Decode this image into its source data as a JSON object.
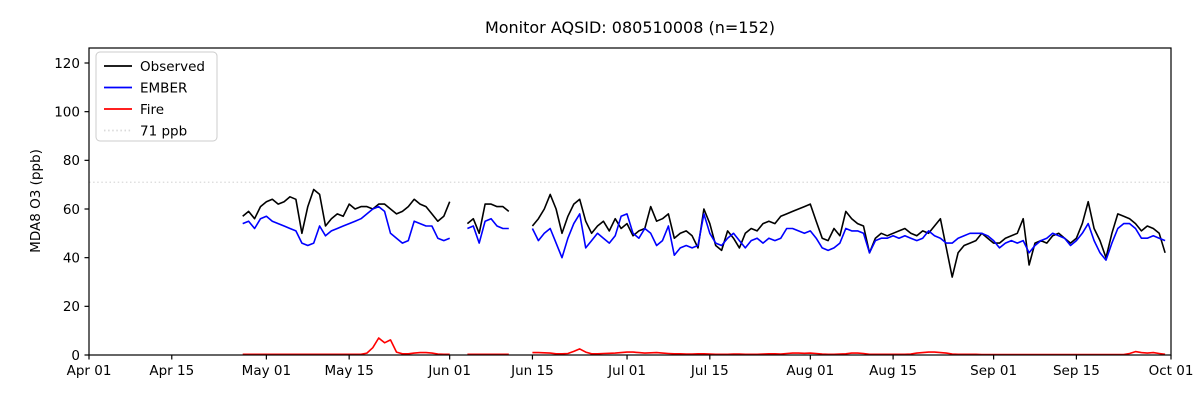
{
  "chart_data": {
    "type": "line",
    "title": "Monitor AQSID: 080510008 (n=152)",
    "ylabel": "MDA8 O3 (ppb)",
    "xlabel": "",
    "ylim": [
      0,
      126
    ],
    "yticks": [
      0,
      20,
      40,
      60,
      80,
      100,
      120
    ],
    "x_axis_days_total": 183,
    "xticks": [
      {
        "label": "Apr 01",
        "day": 0
      },
      {
        "label": "Apr 15",
        "day": 14
      },
      {
        "label": "May 01",
        "day": 30
      },
      {
        "label": "May 15",
        "day": 44
      },
      {
        "label": "Jun 01",
        "day": 61
      },
      {
        "label": "Jun 15",
        "day": 75
      },
      {
        "label": "Jul 01",
        "day": 91
      },
      {
        "label": "Jul 15",
        "day": 105
      },
      {
        "label": "Aug 01",
        "day": 122
      },
      {
        "label": "Aug 15",
        "day": 136
      },
      {
        "label": "Sep 01",
        "day": 153
      },
      {
        "label": "Sep 15",
        "day": 167
      },
      {
        "label": "Oct 01",
        "day": 183
      }
    ],
    "reference_line": {
      "label": "71 ppb",
      "value": 71,
      "color": "#d9d9d9",
      "style": "dotted"
    },
    "legend_position": "upper-left",
    "grid": false,
    "series": [
      {
        "name": "Observed",
        "color": "#000000",
        "style": "solid",
        "segments": [
          {
            "start_day": 26,
            "start_date": "Apr 27",
            "values": [
              57,
              59,
              56,
              61,
              63,
              64,
              62,
              63,
              65,
              64,
              50,
              61,
              68,
              66,
              53,
              56,
              58,
              57,
              62,
              60,
              61,
              61,
              60,
              62,
              62,
              60,
              58,
              59,
              61,
              64,
              62,
              61,
              58,
              55,
              57,
              63
            ]
          },
          {
            "start_day": 64,
            "start_date": "Jun 04",
            "values": [
              54,
              56,
              50,
              62,
              62,
              61,
              61,
              59
            ]
          },
          {
            "start_day": 75,
            "start_date": "Jun 15",
            "values": [
              53,
              56,
              60,
              66,
              60,
              50,
              57,
              62,
              64,
              55,
              50,
              53,
              55,
              51,
              56,
              52,
              54,
              49,
              51,
              52,
              61,
              55,
              56,
              58,
              48,
              50,
              51,
              49,
              44,
              60,
              54,
              45,
              43,
              51,
              48,
              44,
              50,
              52,
              51,
              54,
              55,
              54,
              57,
              58,
              59,
              60,
              61,
              62,
              55,
              48,
              47,
              52,
              49,
              59,
              56,
              54,
              53,
              42,
              48,
              50,
              49,
              50,
              51,
              52,
              50,
              49,
              51,
              50,
              53,
              56,
              44,
              32,
              42,
              45,
              46,
              47,
              50,
              48,
              46,
              46,
              48,
              49,
              50,
              56,
              37,
              46,
              47,
              46,
              49,
              50,
              48,
              46,
              48,
              54,
              63,
              52,
              47,
              40,
              50,
              58,
              57,
              56,
              54,
              51,
              53,
              52,
              50,
              42
            ]
          }
        ]
      },
      {
        "name": "EMBER",
        "color": "#0000ff",
        "style": "solid",
        "segments": [
          {
            "start_day": 26,
            "start_date": "Apr 27",
            "values": [
              54,
              55,
              52,
              56,
              57,
              55,
              54,
              53,
              52,
              51,
              46,
              45,
              46,
              53,
              49,
              51,
              52,
              53,
              54,
              55,
              56,
              58,
              60,
              61,
              59,
              50,
              48,
              46,
              47,
              55,
              54,
              53,
              53,
              48,
              47,
              48
            ]
          },
          {
            "start_day": 64,
            "start_date": "Jun 04",
            "values": [
              52,
              53,
              46,
              55,
              56,
              53,
              52,
              52
            ]
          },
          {
            "start_day": 75,
            "start_date": "Jun 15",
            "values": [
              52,
              47,
              50,
              52,
              46,
              40,
              48,
              54,
              58,
              44,
              47,
              50,
              48,
              46,
              49,
              57,
              58,
              50,
              48,
              52,
              50,
              45,
              47,
              53,
              41,
              44,
              45,
              44,
              45,
              58,
              50,
              46,
              45,
              48,
              50,
              47,
              44,
              47,
              48,
              46,
              48,
              47,
              48,
              52,
              52,
              51,
              50,
              51,
              48,
              44,
              43,
              44,
              46,
              52,
              51,
              51,
              50,
              42,
              47,
              48,
              48,
              49,
              48,
              49,
              48,
              47,
              48,
              51,
              49,
              48,
              46,
              46,
              48,
              49,
              50,
              50,
              50,
              49,
              47,
              44,
              46,
              47,
              46,
              47,
              42,
              45,
              47,
              48,
              50,
              49,
              48,
              45,
              47,
              50,
              54,
              47,
              42,
              39,
              46,
              52,
              54,
              54,
              52,
              48,
              48,
              49,
              48,
              47
            ]
          }
        ]
      },
      {
        "name": "Fire",
        "color": "#ff0000",
        "style": "solid",
        "segments": [
          {
            "start_day": 26,
            "start_date": "Apr 27",
            "values": [
              0.3,
              0.3,
              0.3,
              0.3,
              0.3,
              0.3,
              0.3,
              0.3,
              0.3,
              0.3,
              0.3,
              0.3,
              0.3,
              0.3,
              0.3,
              0.3,
              0.3,
              0.3,
              0.3,
              0.3,
              0.3,
              0.8,
              3,
              7,
              5,
              6.2,
              1.2,
              0.5,
              0.5,
              0.8,
              1,
              1,
              0.8,
              0.4,
              0.3,
              0.3
            ]
          },
          {
            "start_day": 64,
            "start_date": "Jun 04",
            "values": [
              0.3,
              0.3,
              0.3,
              0.3,
              0.3,
              0.3,
              0.3,
              0.3
            ]
          },
          {
            "start_day": 75,
            "start_date": "Jun 15",
            "values": [
              1,
              1,
              0.9,
              0.8,
              0.5,
              0.5,
              0.6,
              1.5,
              2.5,
              1.2,
              0.5,
              0.5,
              0.6,
              0.7,
              0.8,
              1,
              1.2,
              1.2,
              1,
              0.8,
              0.9,
              1,
              0.8,
              0.6,
              0.5,
              0.5,
              0.4,
              0.4,
              0.5,
              0.5,
              0.4,
              0.3,
              0.3,
              0.3,
              0.4,
              0.4,
              0.3,
              0.3,
              0.3,
              0.4,
              0.5,
              0.5,
              0.4,
              0.6,
              0.8,
              0.8,
              0.7,
              0.8,
              0.6,
              0.4,
              0.3,
              0.3,
              0.4,
              0.5,
              0.8,
              0.8,
              0.6,
              0.3,
              0.3,
              0.3,
              0.3,
              0.3,
              0.3,
              0.3,
              0.4,
              0.8,
              1,
              1.2,
              1.2,
              1,
              0.8,
              0.4,
              0.3,
              0.3,
              0.3,
              0.3,
              0.2,
              0.2,
              0.2,
              0.2,
              0.2,
              0.2,
              0.2,
              0.2,
              0.2,
              0.2,
              0.2,
              0.2,
              0.2,
              0.2,
              0.2,
              0.2,
              0.2,
              0.2,
              0.2,
              0.2,
              0.2,
              0.2,
              0.2,
              0.2,
              0.2,
              0.6,
              1.4,
              1,
              0.8,
              1,
              0.6,
              0.3
            ]
          }
        ]
      }
    ],
    "legend_items": [
      {
        "label": "Observed",
        "color": "#000000",
        "style": "solid"
      },
      {
        "label": "EMBER",
        "color": "#0000ff",
        "style": "solid"
      },
      {
        "label": "Fire",
        "color": "#ff0000",
        "style": "solid"
      },
      {
        "label": "71 ppb",
        "color": "#d9d9d9",
        "style": "dotted"
      }
    ]
  }
}
